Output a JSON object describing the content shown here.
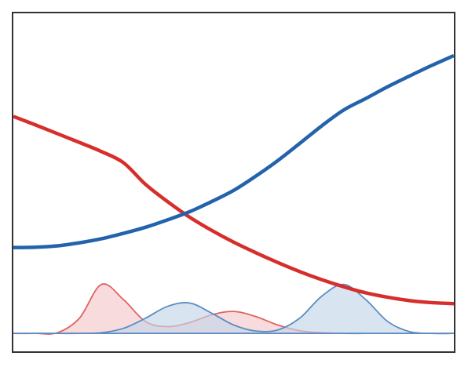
{
  "chart_data": {
    "type": "line",
    "x": [
      0,
      0.5,
      1,
      1.5,
      2,
      2.5,
      3,
      3.5,
      4,
      4.5,
      5,
      5.5,
      6,
      6.5,
      7,
      7.5,
      8,
      8.5,
      9,
      9.5,
      10
    ],
    "xlim": [
      0,
      10
    ],
    "ylim": [
      -0.53,
      9.47
    ],
    "series": [
      {
        "color": "#e06262",
        "fill": "#f4c9cb",
        "values": [
          0,
          0,
          0.02,
          0.45,
          1.45,
          1.0,
          0.35,
          0.2,
          0.32,
          0.55,
          0.65,
          0.5,
          0.25,
          0.08,
          0.02,
          0,
          0,
          0,
          0,
          0,
          0
        ]
      },
      {
        "color": "#5a8dc3",
        "fill": "#c5d5ea",
        "values": [
          0,
          0,
          0,
          0,
          0.02,
          0.15,
          0.45,
          0.8,
          0.9,
          0.6,
          0.25,
          0.07,
          0.1,
          0.45,
          1.1,
          1.45,
          1.0,
          0.35,
          0.05,
          0,
          0
        ]
      },
      {
        "color": "#d62f2b",
        "values": [
          6.42,
          6.17,
          5.91,
          5.65,
          5.38,
          5.05,
          4.41,
          3.9,
          3.44,
          3.05,
          2.7,
          2.39,
          2.1,
          1.83,
          1.59,
          1.38,
          1.2,
          1.07,
          0.97,
          0.91,
          0.88
        ]
      },
      {
        "color": "#2263ab",
        "values": [
          2.54,
          2.55,
          2.59,
          2.68,
          2.8,
          2.96,
          3.14,
          3.36,
          3.6,
          3.9,
          4.23,
          4.65,
          5.11,
          5.62,
          6.14,
          6.61,
          6.95,
          7.3,
          7.62,
          7.93,
          8.22
        ]
      }
    ]
  }
}
